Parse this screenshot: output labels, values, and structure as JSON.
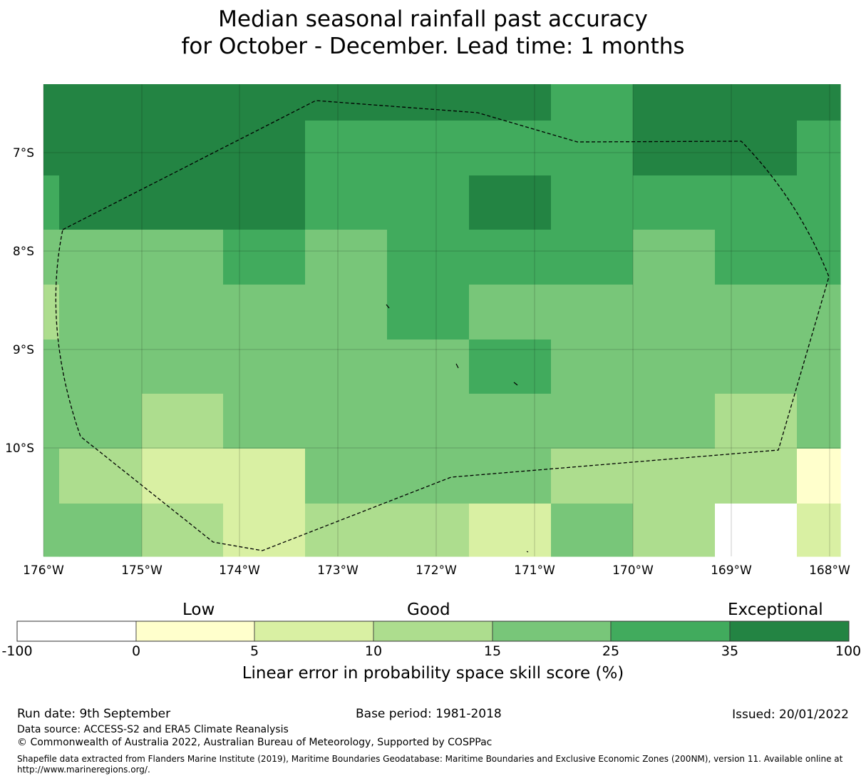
{
  "title": {
    "line1": "Median seasonal rainfall past accuracy",
    "line2": "for October - December. Lead time: 1 months"
  },
  "map": {
    "lon_labels": [
      "176°W",
      "175°W",
      "174°W",
      "173°W",
      "172°W",
      "171°W",
      "170°W",
      "169°W",
      "168°W"
    ],
    "lat_labels": [
      "7°S",
      "8°S",
      "9°S",
      "10°S"
    ],
    "grid_rows": [
      [
        6,
        6,
        6,
        6,
        6,
        6,
        6,
        5,
        6,
        6,
        6
      ],
      [
        6,
        6,
        6,
        6,
        5,
        5,
        5,
        5,
        6,
        6,
        5
      ],
      [
        5,
        6,
        6,
        6,
        5,
        5,
        6,
        5,
        5,
        5,
        5
      ],
      [
        4,
        4,
        4,
        5,
        4,
        5,
        5,
        5,
        4,
        5,
        5
      ],
      [
        3,
        4,
        4,
        4,
        4,
        5,
        4,
        4,
        4,
        4,
        4
      ],
      [
        4,
        4,
        4,
        4,
        4,
        4,
        5,
        4,
        4,
        4,
        4
      ],
      [
        4,
        4,
        3,
        4,
        4,
        4,
        4,
        4,
        4,
        3,
        4
      ],
      [
        4,
        3,
        2,
        2,
        4,
        4,
        4,
        3,
        3,
        3,
        1
      ],
      [
        4,
        4,
        3,
        2,
        3,
        3,
        2,
        4,
        3,
        0,
        2
      ]
    ]
  },
  "colorbar": {
    "colors": [
      "#ffffff",
      "#ffffcc",
      "#d9f0a3",
      "#addd8e",
      "#78c679",
      "#41ab5d",
      "#238443"
    ],
    "tick_labels": [
      "-100",
      "0",
      "5",
      "10",
      "15",
      "25",
      "35",
      "100"
    ],
    "category_labels": [
      "Low",
      "Good",
      "Exceptional"
    ],
    "label": "Linear error in probability space skill score (%)"
  },
  "footer": {
    "run_date": "Run date: 9th September",
    "base_period": "Base period: 1981-2018",
    "issued": "Issued: 20/01/2022",
    "data_source": "Data source: ACCESS-S2 and ERA5 Climate Reanalysis",
    "copyright": "© Commonwealth of Australia 2022, Australian Bureau of Meteorology, Supported by COSPPac",
    "shapefile": "Shapefile data extracted from Flanders Marine Institute (2019), Maritime Boundaries Geodatabase: Maritime Boundaries and Exclusive Economic Zones (200NM), version 11. Available online at http://www.marineregions.org/."
  }
}
